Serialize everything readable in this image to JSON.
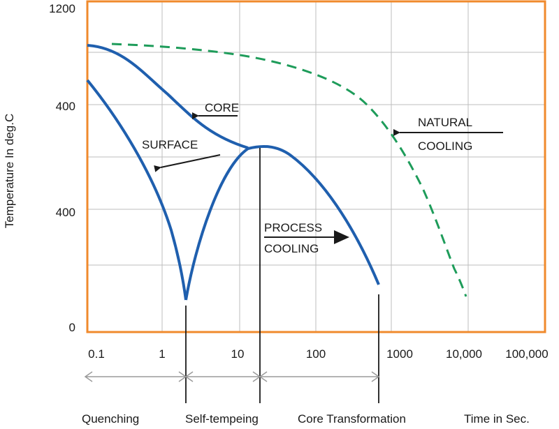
{
  "chart_data": {
    "type": "line",
    "title": "",
    "xlabel": "Time in Sec.",
    "ylabel": "Temperature In deg.C",
    "x_scale": "log",
    "xlim": [
      0.1,
      100000
    ],
    "x_tick_labels": [
      "0.1",
      "1",
      "10",
      "100",
      "1000",
      "10,000",
      "100,000"
    ],
    "y_tick_labels": [
      "1200",
      "400",
      "400",
      "0"
    ],
    "grid": true,
    "series": [
      {
        "name": "CORE",
        "style": "solid",
        "color": "#1f5fae",
        "points": [
          [
            0.1,
            1040
          ],
          [
            0.2,
            1020
          ],
          [
            0.4,
            980
          ],
          [
            0.8,
            900
          ],
          [
            1.5,
            820
          ],
          [
            3,
            760
          ],
          [
            6,
            720
          ],
          [
            10,
            705
          ],
          [
            15,
            690
          ],
          [
            20,
            690
          ]
        ]
      },
      {
        "name": "SURFACE",
        "style": "solid",
        "color": "#1f5fae",
        "points": [
          [
            0.1,
            880
          ],
          [
            0.2,
            820
          ],
          [
            0.4,
            720
          ],
          [
            0.8,
            590
          ],
          [
            1.3,
            460
          ],
          [
            1.8,
            330
          ],
          [
            2.2,
            210
          ],
          [
            2.5,
            90
          ]
        ]
      },
      {
        "name": "PROCESS COOLING",
        "style": "solid",
        "color": "#1f5fae",
        "points": [
          [
            2.5,
            90
          ],
          [
            3,
            210
          ],
          [
            4.5,
            400
          ],
          [
            7,
            560
          ],
          [
            12,
            660
          ],
          [
            20,
            690
          ],
          [
            40,
            680
          ],
          [
            80,
            620
          ],
          [
            150,
            530
          ],
          [
            300,
            380
          ],
          [
            500,
            260
          ],
          [
            700,
            150
          ]
        ]
      },
      {
        "name": "NATURAL COOLING",
        "style": "dashed",
        "color": "#1e9c5a",
        "points": [
          [
            0.2,
            1045
          ],
          [
            1,
            1030
          ],
          [
            5,
            1010
          ],
          [
            15,
            985
          ],
          [
            40,
            940
          ],
          [
            100,
            880
          ],
          [
            300,
            760
          ],
          [
            800,
            610
          ],
          [
            1500,
            500
          ],
          [
            3000,
            340
          ],
          [
            6000,
            180
          ],
          [
            10000,
            55
          ]
        ]
      }
    ],
    "annotations": [
      {
        "text": "CORE"
      },
      {
        "text": "SURFACE"
      },
      {
        "text": "NATURAL"
      },
      {
        "text": "COOLING"
      },
      {
        "text": "PROCESS"
      },
      {
        "text": "COOLING"
      }
    ],
    "phases": [
      {
        "label": "Quenching"
      },
      {
        "label": "Self-tempeing"
      },
      {
        "label": "Core Transformation"
      }
    ],
    "colors": {
      "frame": "#f08a2c",
      "grid": "#bdbdbd",
      "curve": "#1f5fae",
      "natural": "#1e9c5a",
      "divider": "#1a1a1a",
      "span": "#9a9a9a"
    }
  }
}
